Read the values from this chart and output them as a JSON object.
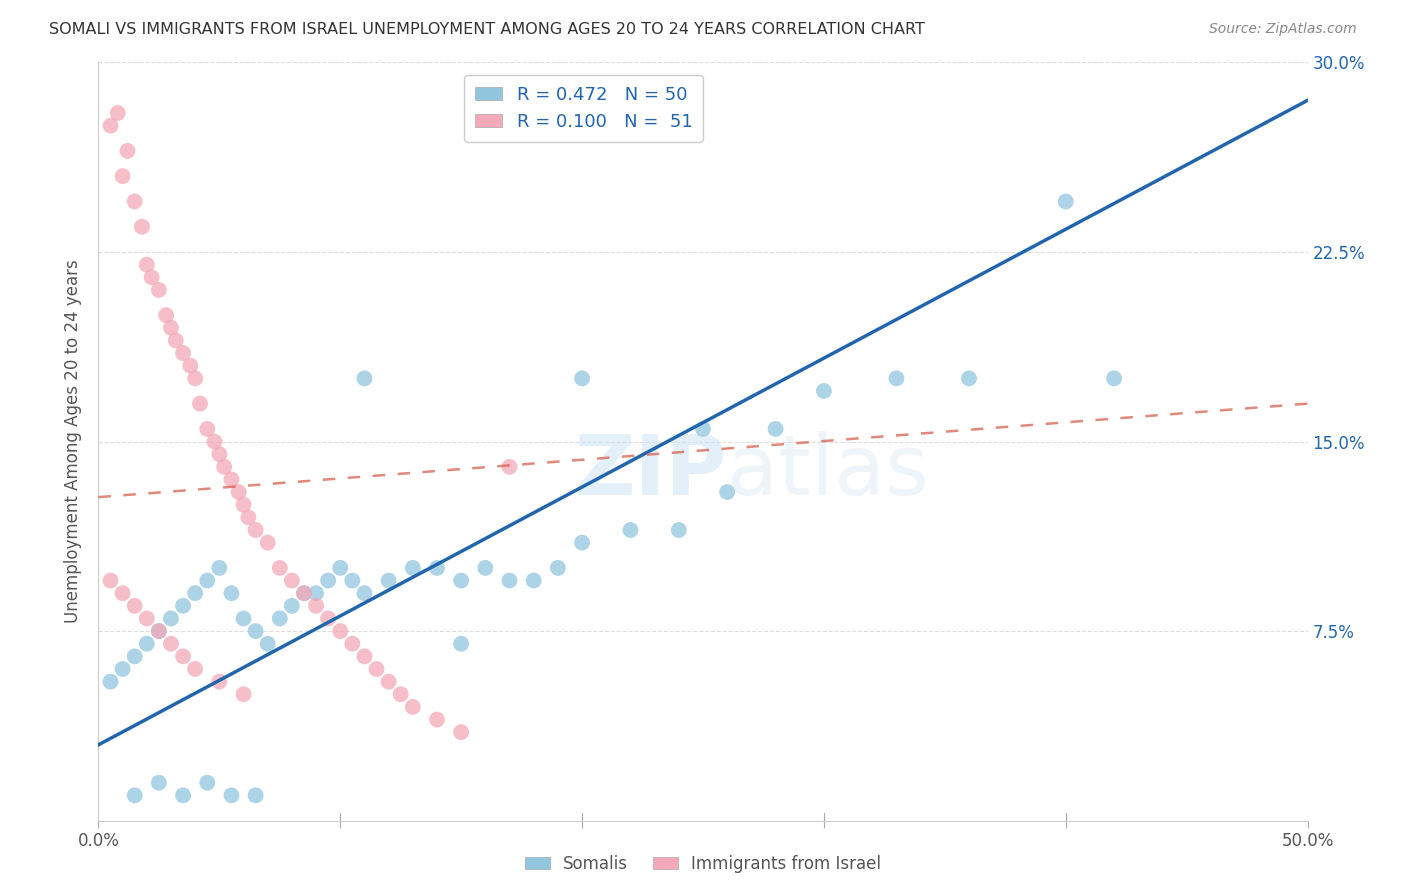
{
  "title": "SOMALI VS IMMIGRANTS FROM ISRAEL UNEMPLOYMENT AMONG AGES 20 TO 24 YEARS CORRELATION CHART",
  "source": "Source: ZipAtlas.com",
  "ylabel": "Unemployment Among Ages 20 to 24 years",
  "xmin": 0.0,
  "xmax": 0.5,
  "ymin": 0.0,
  "ymax": 0.3,
  "ytick_vals": [
    0.075,
    0.15,
    0.225,
    0.3
  ],
  "ytick_labels": [
    "7.5%",
    "15.0%",
    "22.5%",
    "30.0%"
  ],
  "blue_R": 0.472,
  "blue_N": 50,
  "pink_R": 0.1,
  "pink_N": 51,
  "blue_color": "#92c5de",
  "pink_color": "#f4a8b8",
  "blue_line_color": "#2166ac",
  "pink_line_color": "#d6604d",
  "watermark_zip": "ZIP",
  "watermark_atlas": "atlas",
  "legend_label_blue": "Somalis",
  "legend_label_pink": "Immigrants from Israel",
  "blue_scatter_x": [
    0.005,
    0.01,
    0.015,
    0.02,
    0.025,
    0.03,
    0.035,
    0.04,
    0.045,
    0.05,
    0.055,
    0.06,
    0.065,
    0.07,
    0.075,
    0.08,
    0.085,
    0.09,
    0.095,
    0.1,
    0.105,
    0.11,
    0.12,
    0.13,
    0.14,
    0.15,
    0.16,
    0.17,
    0.18,
    0.19,
    0.2,
    0.22,
    0.24,
    0.26,
    0.28,
    0.3,
    0.33,
    0.36,
    0.4,
    0.42,
    0.015,
    0.025,
    0.035,
    0.045,
    0.055,
    0.065,
    0.15,
    0.11,
    0.2,
    0.25
  ],
  "blue_scatter_y": [
    0.055,
    0.06,
    0.065,
    0.07,
    0.075,
    0.08,
    0.085,
    0.09,
    0.095,
    0.1,
    0.09,
    0.08,
    0.075,
    0.07,
    0.08,
    0.085,
    0.09,
    0.09,
    0.095,
    0.1,
    0.095,
    0.09,
    0.095,
    0.1,
    0.1,
    0.095,
    0.1,
    0.095,
    0.095,
    0.1,
    0.11,
    0.115,
    0.115,
    0.13,
    0.155,
    0.17,
    0.175,
    0.175,
    0.245,
    0.175,
    0.01,
    0.015,
    0.01,
    0.015,
    0.01,
    0.01,
    0.07,
    0.175,
    0.175,
    0.155
  ],
  "pink_scatter_x": [
    0.005,
    0.008,
    0.01,
    0.012,
    0.015,
    0.018,
    0.02,
    0.022,
    0.025,
    0.028,
    0.03,
    0.032,
    0.035,
    0.038,
    0.04,
    0.042,
    0.045,
    0.048,
    0.05,
    0.052,
    0.055,
    0.058,
    0.06,
    0.062,
    0.065,
    0.07,
    0.075,
    0.08,
    0.085,
    0.09,
    0.095,
    0.1,
    0.105,
    0.11,
    0.115,
    0.12,
    0.125,
    0.13,
    0.14,
    0.15,
    0.005,
    0.01,
    0.015,
    0.02,
    0.025,
    0.03,
    0.035,
    0.04,
    0.05,
    0.06,
    0.17
  ],
  "pink_scatter_y": [
    0.275,
    0.28,
    0.255,
    0.265,
    0.245,
    0.235,
    0.22,
    0.215,
    0.21,
    0.2,
    0.195,
    0.19,
    0.185,
    0.18,
    0.175,
    0.165,
    0.155,
    0.15,
    0.145,
    0.14,
    0.135,
    0.13,
    0.125,
    0.12,
    0.115,
    0.11,
    0.1,
    0.095,
    0.09,
    0.085,
    0.08,
    0.075,
    0.07,
    0.065,
    0.06,
    0.055,
    0.05,
    0.045,
    0.04,
    0.035,
    0.095,
    0.09,
    0.085,
    0.08,
    0.075,
    0.07,
    0.065,
    0.06,
    0.055,
    0.05,
    0.14
  ]
}
